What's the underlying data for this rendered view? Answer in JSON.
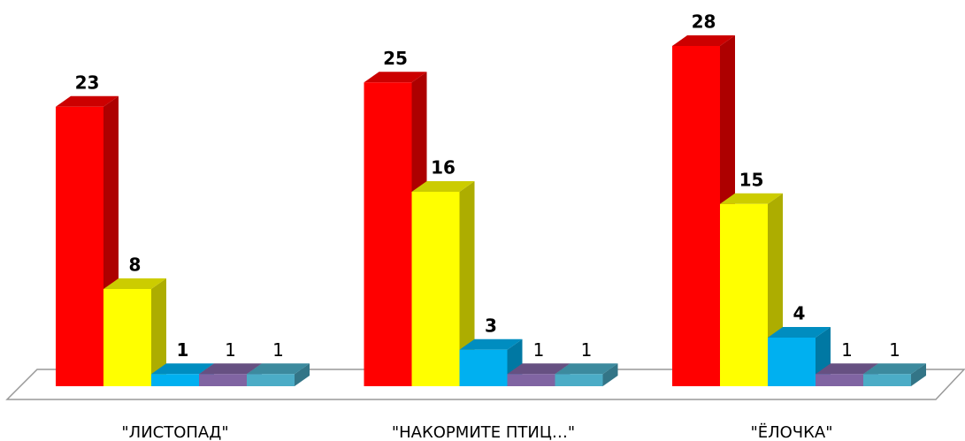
{
  "chart_data": {
    "type": "bar3d",
    "categories": [
      "\"ЛИСТОПАД\"",
      "\"НАКОРМИТЕ ПТИЦ…\"",
      "\"ЁЛОЧКА\""
    ],
    "series": [
      {
        "color": "#ff0000",
        "values": [
          23,
          25,
          28
        ]
      },
      {
        "color": "#ffff00",
        "values": [
          8,
          16,
          15
        ]
      },
      {
        "color": "#00b0f0",
        "values": [
          1,
          3,
          4
        ]
      },
      {
        "color": "#8064a2",
        "values": [
          1,
          1,
          1
        ]
      },
      {
        "color": "#4bacc6",
        "values": [
          1,
          1,
          1
        ]
      }
    ]
  }
}
